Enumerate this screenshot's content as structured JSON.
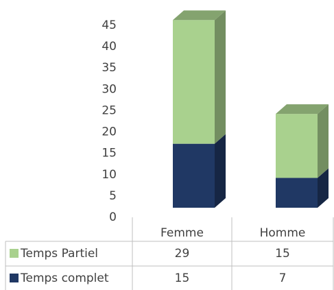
{
  "chart_data": {
    "type": "bar3d_stacked",
    "categories": [
      "Femme",
      "Homme"
    ],
    "series": [
      {
        "name": "Temps complet",
        "color": "#203864",
        "values": [
          15,
          7
        ]
      },
      {
        "name": "Temps Partiel",
        "color": "#a9d18e",
        "values": [
          29,
          15
        ]
      }
    ],
    "ylim": [
      0,
      45
    ],
    "yticks": [
      0,
      5,
      10,
      15,
      20,
      25,
      30,
      35,
      40,
      45
    ]
  }
}
